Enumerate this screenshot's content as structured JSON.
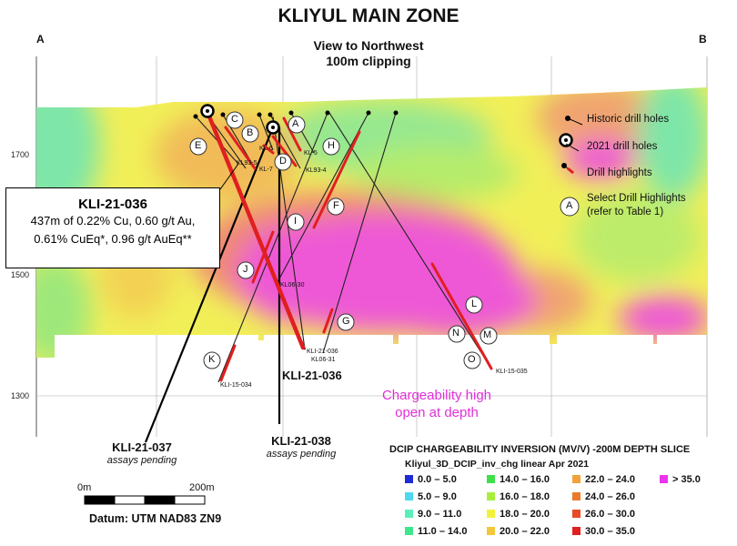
{
  "title": "KLIYUL MAIN ZONE",
  "corner_left": "A",
  "corner_right": "B",
  "view_line1": "View to Northwest",
  "view_line2": "100m clipping",
  "elevations": [
    "1700",
    "1500",
    "1300"
  ],
  "callout": {
    "title": "KLI-21-036",
    "line1": "437m of 0.22% Cu, 0.60 g/t Au,",
    "line2": "0.61% CuEq*, 0.96 g/t AuEq**"
  },
  "key": {
    "historic": "Historic drill holes",
    "y2021": "2021 drill holes",
    "highlights": "Drill highlights",
    "select_line1": "Select Drill Highlights",
    "select_line2": "(refer to Table 1)",
    "select_letter": "A"
  },
  "circle_letters": [
    "A",
    "B",
    "C",
    "D",
    "E",
    "F",
    "G",
    "H",
    "I",
    "J",
    "K",
    "L",
    "M",
    "N",
    "O"
  ],
  "hole_ids": [
    "KL93-5",
    "KL-6",
    "KL-7",
    "KL-5",
    "KL93-4",
    "KL06-30",
    "KLI-21-036",
    "KL06-31",
    "KLI-15-034",
    "KLI-15-035"
  ],
  "hole_labels": {
    "h036": "KLI-21-036",
    "h037": "KLI-21-037",
    "h037_sub": "assays pending",
    "h038": "KLI-21-038",
    "h038_sub": "assays pending"
  },
  "charge_note_line1": "Chargeability high",
  "charge_note_line2": "open at depth",
  "legend": {
    "title": "DCIP CHARGEABILITY INVERSION (MV/V) -200M DEPTH SLICE",
    "subtitle": "Kliyul_3D_DCIP_inv_chg linear Apr 2021",
    "items": [
      {
        "label": "0.0 – 5.0",
        "color": "#1f2bd6"
      },
      {
        "label": "5.0 – 9.0",
        "color": "#4fd8f0"
      },
      {
        "label": "9.0 – 11.0",
        "color": "#5cf0b8"
      },
      {
        "label": "11.0 – 14.0",
        "color": "#3fe68c"
      },
      {
        "label": "14.0 – 16.0",
        "color": "#3ee04a"
      },
      {
        "label": "16.0 – 18.0",
        "color": "#a8ee3c"
      },
      {
        "label": "18.0 – 20.0",
        "color": "#f2f23a"
      },
      {
        "label": "20.0 – 22.0",
        "color": "#f2c83a"
      },
      {
        "label": "22.0 – 24.0",
        "color": "#f2a23a"
      },
      {
        "label": "24.0 – 26.0",
        "color": "#ea7a2a"
      },
      {
        "label": "26.0 – 30.0",
        "color": "#e84a26"
      },
      {
        "label": "30.0 – 35.0",
        "color": "#e01f1f"
      },
      {
        "label": "> 35.0",
        "color": "#ee33ee"
      }
    ]
  },
  "scale": {
    "left": "0m",
    "right": "200m"
  },
  "datum": "Datum: UTM NAD83 ZN9"
}
